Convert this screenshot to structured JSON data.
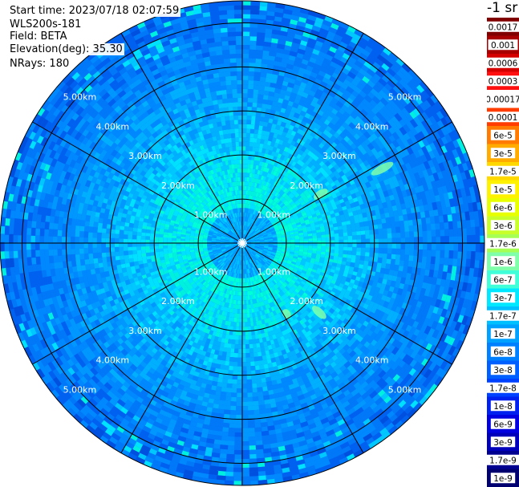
{
  "header": {
    "start_time": "Start time: 2023/07/18 02:07:59",
    "instrument": "WLS200s-181",
    "field": "Field: BETA",
    "elevation": "Elevation(deg): 35.30",
    "nrays": "NRays: 180"
  },
  "chart_data": {
    "type": "heatmap",
    "projection": "polar-ppi",
    "max_range_km": 5.5,
    "range_rings_km": [
      1,
      2,
      3,
      4,
      5
    ],
    "ring_labels": [
      "1.00km",
      "2.00km",
      "3.00km",
      "4.00km",
      "5.00km"
    ],
    "spoke_azimuths_deg": [
      0,
      30,
      60,
      90,
      120,
      150,
      180,
      210,
      240,
      270,
      300,
      330
    ],
    "grid": true,
    "n_rays": 180,
    "units": "-1 sr",
    "colorbar": {
      "labels": [
        "0.0017",
        "0.001",
        "0.0006",
        "0.0003",
        "0.00017",
        "0.0001",
        "6e-5",
        "3e-5",
        "1.7e-5",
        "1e-5",
        "6e-6",
        "3e-6",
        "1.7e-6",
        "1e-6",
        "6e-7",
        "3e-7",
        "1.7e-7",
        "1e-7",
        "6e-8",
        "3e-8",
        "1.7e-8",
        "1e-8",
        "6e-9",
        "3e-9",
        "1.7e-9",
        "1e-9"
      ],
      "colors": [
        "#800000",
        "#a80000",
        "#d40000",
        "#ff1010",
        "#ffffff",
        "#ff3d00",
        "#ff7a00",
        "#ffab00",
        "#ffd800",
        "#fff200",
        "#e8ff00",
        "#c8ff2a",
        "#a6ff55",
        "#7fffaa",
        "#40ffd8",
        "#00e8ff",
        "#00c0ff",
        "#00a0ff",
        "#0080ff",
        "#0060ff",
        "#0040ff",
        "#0020f0",
        "#0000e0",
        "#0000bb",
        "#000090",
        "#000070"
      ]
    },
    "field_colors": {
      "near": "#00ffd0",
      "mid": "#00c0ff",
      "far": "#0070f0",
      "edge": "#0a40d8"
    }
  }
}
